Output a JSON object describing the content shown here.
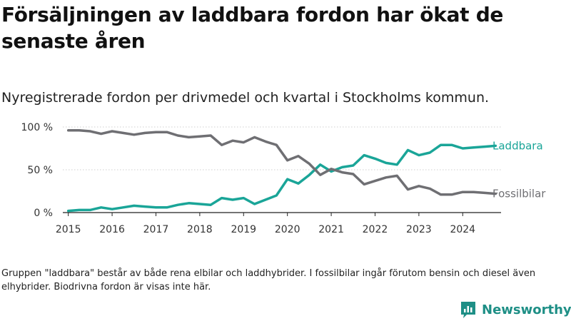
{
  "title": "Försäljningen av laddbara fordon har ökat de senaste åren",
  "subtitle": "Nyregistrerade fordon per drivmedel och kvartal i Stockholms kommun.",
  "footnote": "Gruppen \"laddbara\" består av både rena elbilar och laddhybrider. I fossilbilar ingår förutom bensin och diesel även elhybrider. Biodrivna fordon är visas inte här.",
  "brand": {
    "name": "Newsworthy",
    "icon": "bar-chart-logo-icon",
    "color": "#1e8f86"
  },
  "chart_data": {
    "type": "line",
    "title": "Försäljningen av laddbara fordon har ökat de senaste åren",
    "xlabel": "",
    "ylabel": "",
    "x_ticks": [
      "2015",
      "2016",
      "2017",
      "2018",
      "2019",
      "2020",
      "2021",
      "2022",
      "2023",
      "2024"
    ],
    "y_ticks": [
      "100 %",
      "50 %",
      "0 %"
    ],
    "y_tick_values": [
      100,
      50,
      0
    ],
    "ylim": [
      0,
      100
    ],
    "xlim": [
      2014.875,
      2024.875
    ],
    "grid": "horizontal",
    "x": [
      2015.0,
      2015.25,
      2015.5,
      2015.75,
      2016.0,
      2016.25,
      2016.5,
      2016.75,
      2017.0,
      2017.25,
      2017.5,
      2017.75,
      2018.0,
      2018.25,
      2018.5,
      2018.75,
      2019.0,
      2019.25,
      2019.5,
      2019.75,
      2020.0,
      2020.25,
      2020.5,
      2020.75,
      2021.0,
      2021.25,
      2021.5,
      2021.75,
      2022.0,
      2022.25,
      2022.5,
      2022.75,
      2023.0,
      2023.25,
      2023.5,
      2023.75,
      2024.0,
      2024.25,
      2024.5,
      2024.75
    ],
    "series": [
      {
        "name": "Laddbara",
        "color": "#1aa598",
        "values": [
          2,
          3,
          3,
          6,
          4,
          6,
          8,
          7,
          6,
          6,
          9,
          11,
          10,
          9,
          17,
          15,
          17,
          10,
          15,
          20,
          39,
          34,
          44,
          56,
          48,
          53,
          55,
          67,
          63,
          58,
          56,
          73,
          67,
          70,
          79,
          79,
          75,
          76,
          77,
          78
        ]
      },
      {
        "name": "Fossilbilar",
        "color": "#6f6f73",
        "values": [
          96,
          96,
          95,
          92,
          95,
          93,
          91,
          93,
          94,
          94,
          90,
          88,
          89,
          90,
          79,
          84,
          82,
          88,
          83,
          79,
          61,
          66,
          57,
          44,
          51,
          47,
          45,
          33,
          37,
          41,
          43,
          27,
          31,
          28,
          21,
          21,
          24,
          24,
          23,
          22
        ]
      }
    ]
  }
}
